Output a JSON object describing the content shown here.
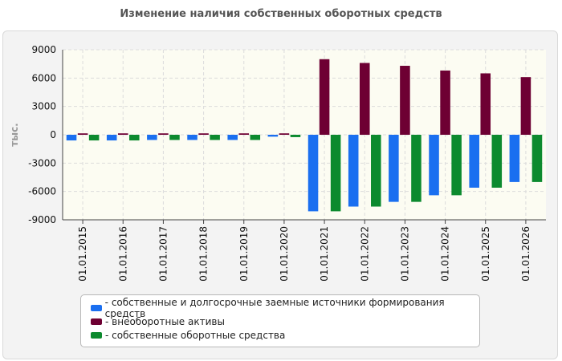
{
  "chart_data": {
    "type": "bar",
    "title": "Изменение наличия собственных оборотных средств",
    "ylabel": "тыс.",
    "xlabel": "",
    "ylim": [
      -9000,
      9000
    ],
    "yticks": [
      -9000,
      -6000,
      -3000,
      0,
      3000,
      6000,
      9000
    ],
    "grid": true,
    "legend_position": "bottom",
    "categories": [
      "01.01.2015",
      "01.01.2016",
      "01.01.2017",
      "01.01.2018",
      "01.01.2019",
      "01.01.2020",
      "01.01.2021",
      "01.01.2022",
      "01.01.2023",
      "01.01.2024",
      "01.01.2025",
      "01.01.2026"
    ],
    "series": [
      {
        "name": "собственные и долгосрочные заемные источники формирования средств",
        "color": "#1a6ff0",
        "values": [
          -600,
          -600,
          -550,
          -550,
          -550,
          -200,
          -8100,
          -7600,
          -7100,
          -6400,
          -5600,
          -5000
        ]
      },
      {
        "name": "внеоборотные активы",
        "color": "#6e0033",
        "values": [
          150,
          150,
          150,
          150,
          150,
          150,
          8000,
          7600,
          7300,
          6800,
          6500,
          6100
        ]
      },
      {
        "name": "собственные оборотные средства",
        "color": "#0c8a2e",
        "values": [
          -600,
          -600,
          -550,
          -550,
          -550,
          -250,
          -8100,
          -7600,
          -7100,
          -6400,
          -5600,
          -5000
        ]
      }
    ]
  }
}
